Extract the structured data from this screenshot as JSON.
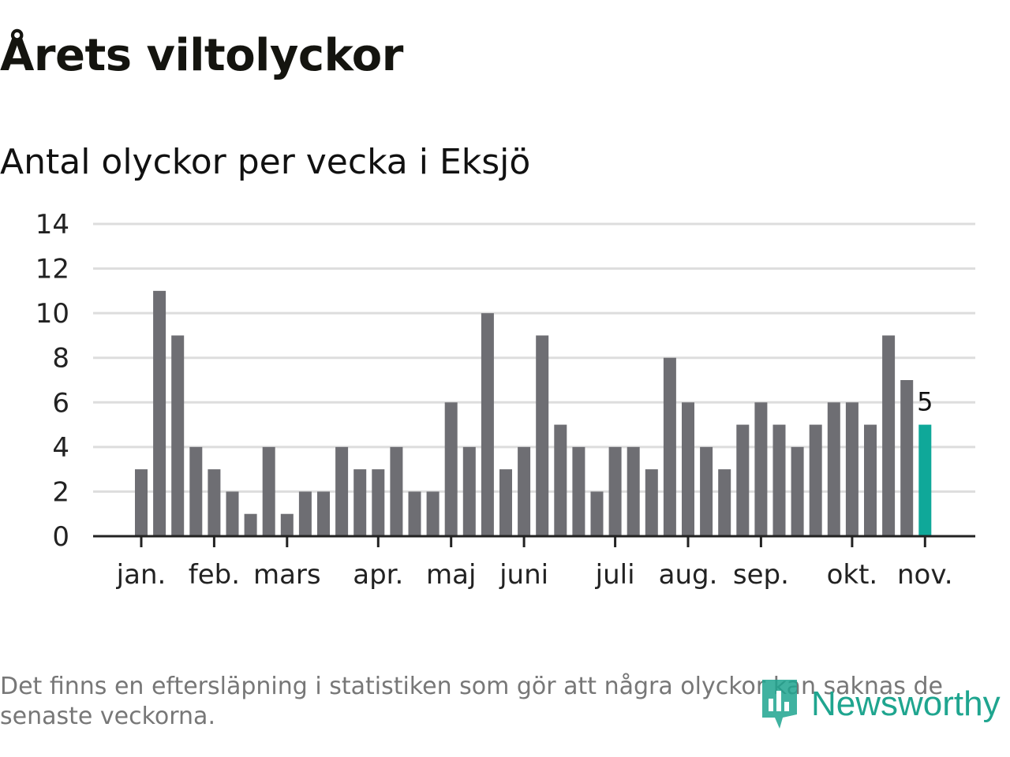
{
  "title": "Årets viltolyckor",
  "subtitle": "Antal olyckor per vecka i Eksjö",
  "footnote": "Det finns en eftersläpning i statistiken som gör att några olyckor kan saknas de senaste veckorna.",
  "brand": {
    "name": "Newsworthy",
    "color": "#1fa58f",
    "icon": "newsworthy-logo-icon"
  },
  "colors": {
    "bar": "#6e6e73",
    "highlight": "#0fa899",
    "grid": "#dddddd",
    "axis": "#222222"
  },
  "chart_data": {
    "type": "bar",
    "title": "",
    "xlabel": "",
    "ylabel": "",
    "ylim": [
      0,
      14
    ],
    "yticks": [
      0,
      2,
      4,
      6,
      8,
      10,
      12,
      14
    ],
    "grid": true,
    "values": [
      3,
      11,
      9,
      4,
      3,
      2,
      1,
      4,
      1,
      2,
      2,
      4,
      3,
      3,
      4,
      2,
      2,
      6,
      4,
      10,
      3,
      4,
      9,
      5,
      4,
      2,
      4,
      4,
      3,
      8,
      6,
      4,
      3,
      5,
      6,
      5,
      4,
      5,
      6,
      6,
      5,
      9,
      7,
      5
    ],
    "month_labels": [
      {
        "label": "jan.",
        "week_index": 0
      },
      {
        "label": "feb.",
        "week_index": 4
      },
      {
        "label": "mars",
        "week_index": 8
      },
      {
        "label": "apr.",
        "week_index": 13
      },
      {
        "label": "maj",
        "week_index": 17
      },
      {
        "label": "juni",
        "week_index": 21
      },
      {
        "label": "juli",
        "week_index": 26
      },
      {
        "label": "aug.",
        "week_index": 30
      },
      {
        "label": "sep.",
        "week_index": 34
      },
      {
        "label": "okt.",
        "week_index": 39
      },
      {
        "label": "nov.",
        "week_index": 43
      }
    ],
    "highlight_index": 43,
    "highlight_label": "5"
  }
}
